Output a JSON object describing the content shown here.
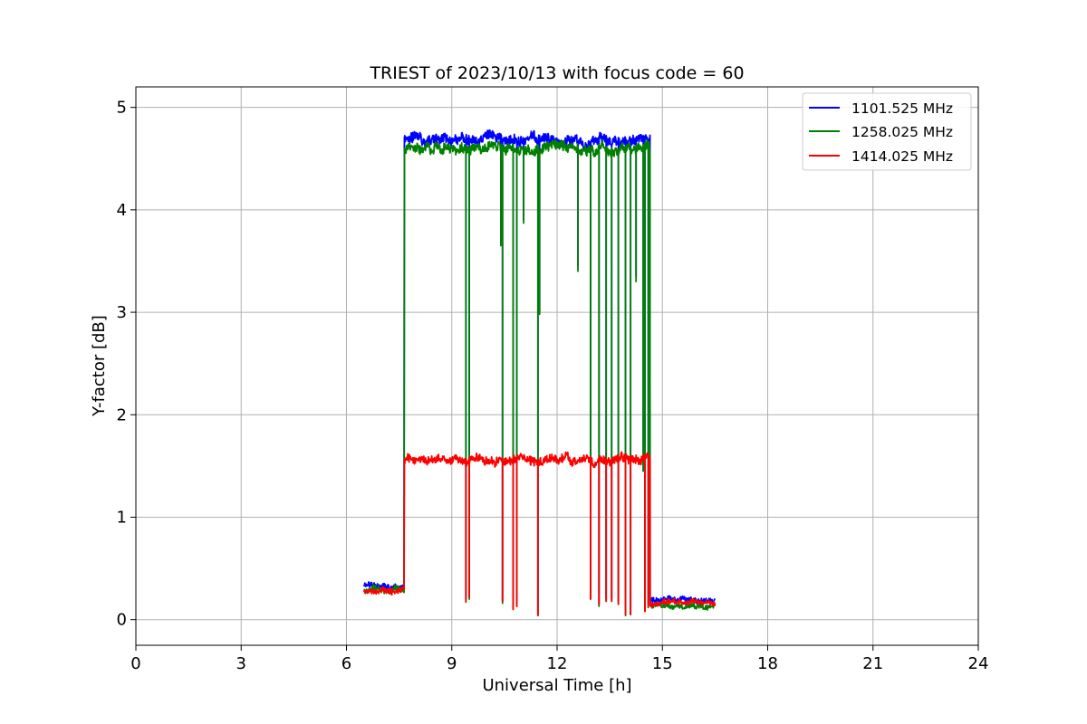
{
  "chart_data": {
    "type": "line",
    "title": "TRIEST of 2023/10/13 with focus code = 60",
    "xlabel": "Universal Time [h]",
    "ylabel": "Y-factor [dB]",
    "xlim": [
      0,
      24
    ],
    "ylim": [
      -0.25,
      5.2
    ],
    "xticks": [
      0,
      3,
      6,
      9,
      12,
      15,
      18,
      21,
      24
    ],
    "yticks": [
      0,
      1,
      2,
      3,
      4,
      5
    ],
    "grid": true,
    "legend_position": "top-right",
    "series": [
      {
        "name": "1101.525 MHz",
        "color": "#0000ff",
        "segments": [
          {
            "x_start": 6.5,
            "x_end": 7.65,
            "level": 0.33,
            "noise": 0.05
          },
          {
            "x_start": 7.65,
            "x_end": 14.65,
            "level": 4.68,
            "noise": 0.09
          },
          {
            "x_start": 14.65,
            "x_end": 16.5,
            "level": 0.19,
            "noise": 0.045
          }
        ],
        "dropouts": [
          {
            "x": 9.4,
            "to": 0.2
          },
          {
            "x": 9.5,
            "to": 0.22
          },
          {
            "x": 10.4,
            "to": 3.7
          },
          {
            "x": 10.45,
            "to": 0.18
          },
          {
            "x": 10.75,
            "to": 0.12
          },
          {
            "x": 10.85,
            "to": 0.15
          },
          {
            "x": 11.05,
            "to": 3.9
          },
          {
            "x": 11.45,
            "to": 0.05
          },
          {
            "x": 11.5,
            "to": 3.0
          },
          {
            "x": 12.6,
            "to": 3.45
          },
          {
            "x": 12.95,
            "to": 0.22
          },
          {
            "x": 13.2,
            "to": 0.15
          },
          {
            "x": 13.4,
            "to": 0.2
          },
          {
            "x": 13.55,
            "to": 0.2
          },
          {
            "x": 13.75,
            "to": 0.18
          },
          {
            "x": 13.95,
            "to": 0.1
          },
          {
            "x": 14.1,
            "to": 0.05
          },
          {
            "x": 14.25,
            "to": 3.35
          },
          {
            "x": 14.45,
            "to": 1.45
          },
          {
            "x": 14.5,
            "to": 0.1
          },
          {
            "x": 14.6,
            "to": 0.15
          }
        ]
      },
      {
        "name": "1258.025 MHz",
        "color": "#008000",
        "segments": [
          {
            "x_start": 6.5,
            "x_end": 7.65,
            "level": 0.29,
            "noise": 0.05
          },
          {
            "x_start": 7.65,
            "x_end": 14.65,
            "level": 4.6,
            "noise": 0.09
          },
          {
            "x_start": 14.65,
            "x_end": 16.5,
            "level": 0.14,
            "noise": 0.045
          }
        ],
        "dropouts": [
          {
            "x": 9.4,
            "to": 0.17
          },
          {
            "x": 9.5,
            "to": 0.2
          },
          {
            "x": 10.4,
            "to": 3.65
          },
          {
            "x": 10.45,
            "to": 0.16
          },
          {
            "x": 10.75,
            "to": 0.1
          },
          {
            "x": 10.85,
            "to": 0.13
          },
          {
            "x": 11.05,
            "to": 3.87
          },
          {
            "x": 11.45,
            "to": 0.04
          },
          {
            "x": 11.5,
            "to": 2.98
          },
          {
            "x": 12.6,
            "to": 3.4
          },
          {
            "x": 12.95,
            "to": 0.2
          },
          {
            "x": 13.2,
            "to": 0.13
          },
          {
            "x": 13.4,
            "to": 0.18
          },
          {
            "x": 13.55,
            "to": 0.18
          },
          {
            "x": 13.75,
            "to": 0.15
          },
          {
            "x": 13.95,
            "to": 0.04
          },
          {
            "x": 14.1,
            "to": 0.05
          },
          {
            "x": 14.25,
            "to": 3.3
          },
          {
            "x": 14.45,
            "to": 1.45
          },
          {
            "x": 14.5,
            "to": 0.08
          },
          {
            "x": 14.6,
            "to": 0.12
          }
        ]
      },
      {
        "name": "1414.025 MHz",
        "color": "#ff0000",
        "segments": [
          {
            "x_start": 6.5,
            "x_end": 7.65,
            "level": 0.28,
            "noise": 0.05
          },
          {
            "x_start": 7.65,
            "x_end": 14.65,
            "level": 1.56,
            "noise": 0.075
          },
          {
            "x_start": 14.65,
            "x_end": 16.5,
            "level": 0.16,
            "noise": 0.045
          }
        ],
        "dropouts": [
          {
            "x": 9.4,
            "to": 0.18
          },
          {
            "x": 9.5,
            "to": 0.22
          },
          {
            "x": 10.45,
            "to": 0.18
          },
          {
            "x": 10.75,
            "to": 0.1
          },
          {
            "x": 10.85,
            "to": 0.13
          },
          {
            "x": 11.45,
            "to": 0.04
          },
          {
            "x": 12.95,
            "to": 0.2
          },
          {
            "x": 13.2,
            "to": 0.15
          },
          {
            "x": 13.4,
            "to": 0.18
          },
          {
            "x": 13.55,
            "to": 0.18
          },
          {
            "x": 13.75,
            "to": 0.15
          },
          {
            "x": 13.95,
            "to": 0.05
          },
          {
            "x": 14.1,
            "to": 0.05
          },
          {
            "x": 14.5,
            "to": 0.08
          },
          {
            "x": 14.6,
            "to": 0.12
          }
        ]
      }
    ]
  }
}
